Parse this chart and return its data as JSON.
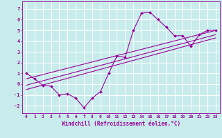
{
  "xlabel": "Windchill (Refroidissement éolien,°C)",
  "bg_color": "#c8ecec",
  "line_color": "#990099",
  "grid_color": "#ffffff",
  "xlim": [
    -0.5,
    23.5
  ],
  "ylim": [
    -2.7,
    7.7
  ],
  "xticks": [
    0,
    1,
    2,
    3,
    4,
    5,
    6,
    7,
    8,
    9,
    10,
    11,
    12,
    13,
    14,
    15,
    16,
    17,
    18,
    19,
    20,
    21,
    22,
    23
  ],
  "yticks": [
    -2,
    -1,
    0,
    1,
    2,
    3,
    4,
    5,
    6,
    7
  ],
  "scatter_x": [
    0,
    1,
    2,
    3,
    4,
    5,
    6,
    7,
    8,
    9,
    10,
    11,
    12,
    13,
    14,
    15,
    16,
    17,
    18,
    19,
    20,
    21,
    22,
    23
  ],
  "scatter_y": [
    1,
    0.5,
    -0.1,
    -0.2,
    -1.0,
    -0.9,
    -1.3,
    -2.2,
    -1.3,
    -0.7,
    1.0,
    2.6,
    2.5,
    5.0,
    6.6,
    6.7,
    6.0,
    5.3,
    4.5,
    4.5,
    3.5,
    4.6,
    5.0,
    5.0
  ],
  "line1_x": [
    0,
    23
  ],
  "line1_y": [
    0.5,
    5.0
  ],
  "line2_x": [
    0,
    23
  ],
  "line2_y": [
    -0.1,
    4.6
  ],
  "line3_x": [
    0,
    23
  ],
  "line3_y": [
    -0.5,
    4.3
  ]
}
